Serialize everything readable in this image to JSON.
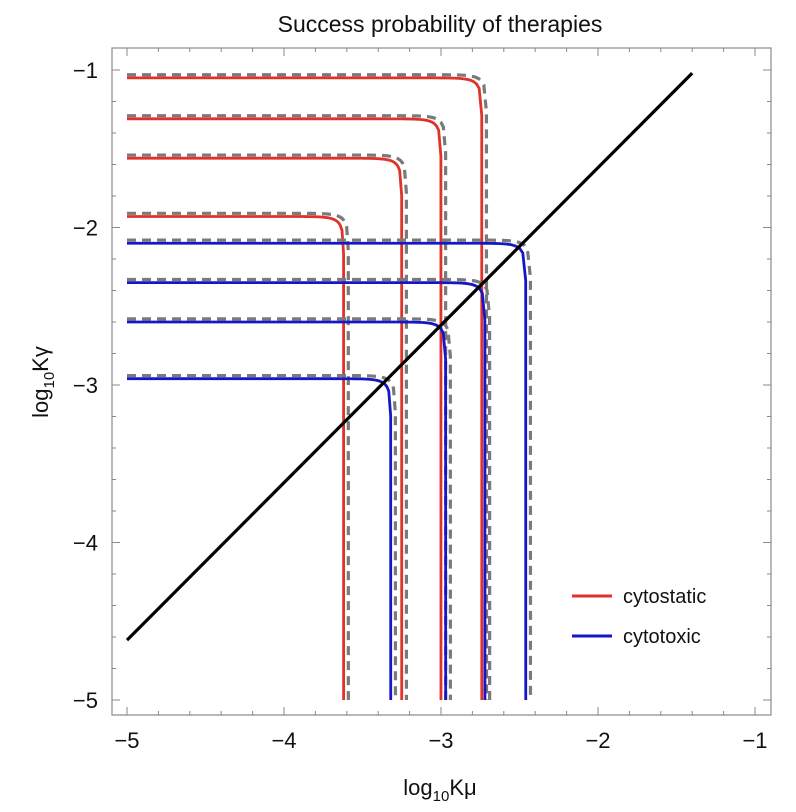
{
  "chart_data": {
    "type": "line",
    "title": "Success probability of therapies",
    "xlabel": {
      "prefix": "log",
      "sub": "10",
      "suffix": "Kμ"
    },
    "ylabel": {
      "prefix": "log",
      "sub": "10",
      "suffix": "Kγ"
    },
    "xlim": [
      -5,
      -1
    ],
    "ylim": [
      -5,
      -1
    ],
    "x_ticks": [
      -5,
      -4,
      -3,
      -2,
      -1
    ],
    "y_ticks": [
      -1,
      -2,
      -3,
      -4,
      -5
    ],
    "x_tick_labels": [
      "−5",
      "−4",
      "−3",
      "−2",
      "−1"
    ],
    "y_tick_labels": [
      "−1",
      "−2",
      "−3",
      "−4",
      "−5"
    ],
    "grid": false,
    "legend_position": "bottom-right",
    "colors": {
      "cytostatic": "#e0322a",
      "cytotoxic": "#1616c8",
      "approximation": "#7a7a7a",
      "diagonal": "#000000",
      "frame": "#8a8a8a"
    },
    "legend": [
      {
        "label": "cytostatic",
        "color": "#e0322a"
      },
      {
        "label": "cytotoxic",
        "color": "#1616c8"
      }
    ],
    "series": [
      {
        "name": "cytostatic",
        "asymptote_x": -3.62,
        "asymptote_y": -1.93,
        "corner": 0.12,
        "values_note": "red"
      },
      {
        "name": "cytostatic",
        "asymptote_x": -3.25,
        "asymptote_y": -1.56,
        "corner": 0.12
      },
      {
        "name": "cytostatic",
        "asymptote_x": -3.0,
        "asymptote_y": -1.31,
        "corner": 0.12
      },
      {
        "name": "cytostatic",
        "asymptote_x": -2.74,
        "asymptote_y": -1.05,
        "corner": 0.12
      },
      {
        "name": "cytotoxic",
        "asymptote_x": -3.32,
        "asymptote_y": -2.96,
        "corner": 0.12
      },
      {
        "name": "cytotoxic",
        "asymptote_x": -2.97,
        "asymptote_y": -2.6,
        "corner": 0.12
      },
      {
        "name": "cytotoxic",
        "asymptote_x": -2.72,
        "asymptote_y": -2.35,
        "corner": 0.12
      },
      {
        "name": "cytotoxic",
        "asymptote_x": -2.46,
        "asymptote_y": -2.1,
        "corner": 0.12
      }
    ],
    "diagonal": {
      "x": [
        -5,
        -1.4
      ],
      "y": [
        -4.62,
        -1.02
      ]
    }
  }
}
